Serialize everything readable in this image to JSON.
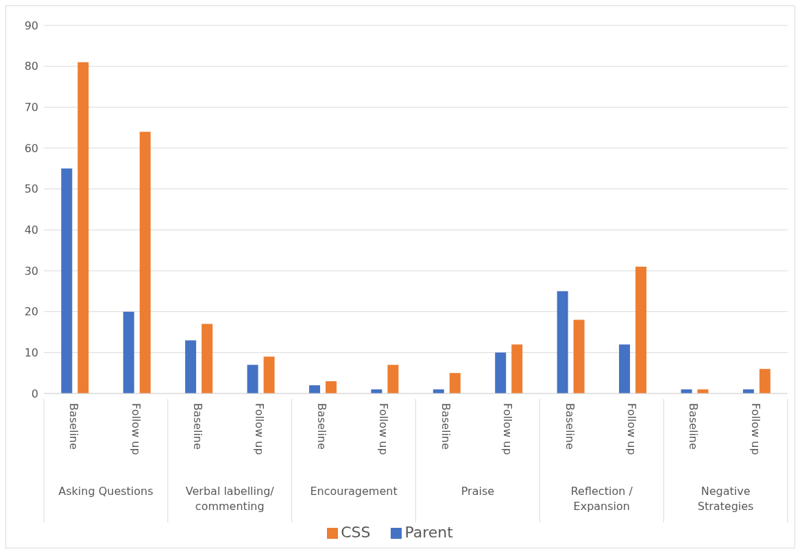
{
  "chart_data": {
    "type": "bar",
    "categories": [
      "Baseline",
      "Follow up",
      "Baseline",
      "Follow up",
      "Baseline",
      "Follow up",
      "Baseline",
      "Follow up",
      "Baseline",
      "Follow up",
      "Baseline",
      "Follow up"
    ],
    "annotations": [
      "Asking Questions",
      "Verbal labelling/ commenting",
      "Encouragement",
      "Praise",
      "Reflection / Expansion",
      "Negative Strategies"
    ],
    "series": [
      {
        "name": "Parent",
        "color": "#4472c4",
        "values": [
          55,
          20,
          13,
          7,
          2,
          1,
          1,
          10,
          25,
          12,
          1,
          1
        ]
      },
      {
        "name": "CSS",
        "color": "#ed7d31",
        "values": [
          81,
          64,
          17,
          9,
          3,
          7,
          5,
          12,
          18,
          31,
          1,
          6
        ]
      }
    ],
    "ylim": [
      0,
      90
    ],
    "yticks": [
      0,
      10,
      20,
      30,
      40,
      50,
      60,
      70,
      80,
      90
    ],
    "grid": "y",
    "legend": "bottom"
  }
}
